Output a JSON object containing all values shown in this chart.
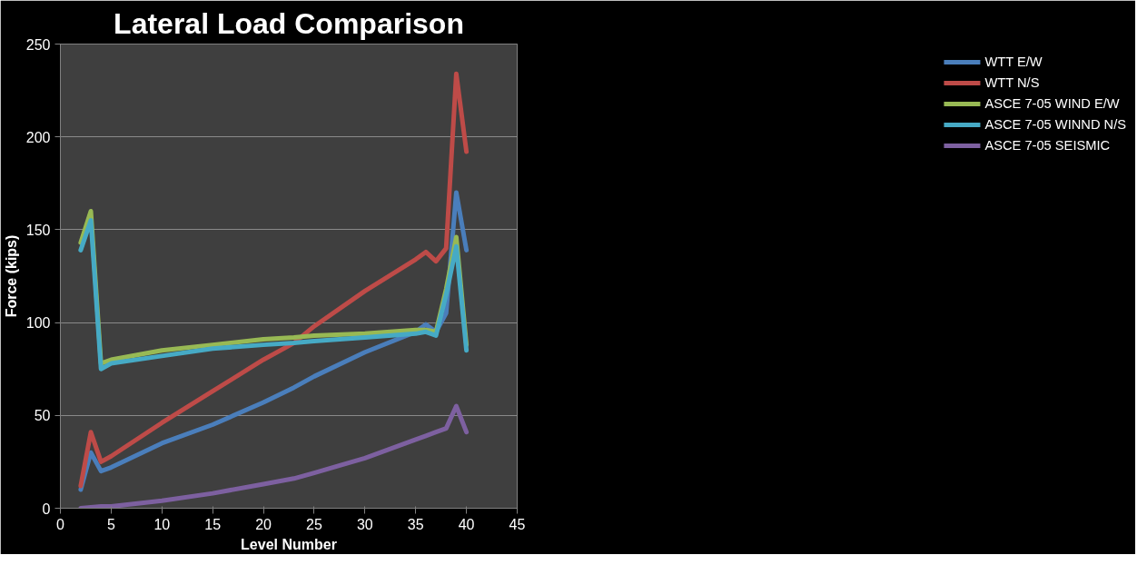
{
  "chart_data": {
    "type": "line",
    "title": "Lateral Load Comparison",
    "xlabel": "Level Number",
    "ylabel": "Force (kips)",
    "x": [
      2,
      3,
      4,
      5,
      10,
      15,
      20,
      23,
      25,
      30,
      35,
      36,
      37,
      38,
      39,
      40
    ],
    "xlim": [
      0,
      45
    ],
    "xticks": [
      0,
      5,
      10,
      15,
      20,
      25,
      30,
      35,
      40,
      45
    ],
    "ylim": [
      0,
      250
    ],
    "yticks": [
      0,
      50,
      100,
      150,
      200,
      250
    ],
    "grid": "y",
    "legend": "right",
    "marker": "none",
    "line_style": "solid",
    "series": [
      {
        "name": "WTT E/W",
        "color": "#4a7ebb",
        "values": [
          10,
          30,
          20,
          22,
          35,
          45,
          57,
          65,
          71,
          84,
          95,
          99,
          95,
          105,
          170,
          139
        ]
      },
      {
        "name": "WTT N/S",
        "color": "#be4b48",
        "values": [
          12,
          41,
          25,
          28,
          46,
          63,
          80,
          89,
          98,
          117,
          134,
          138,
          133,
          140,
          234,
          192
        ]
      },
      {
        "name": "ASCE 7-05 WIND E/W",
        "color": "#98b954",
        "values": [
          143,
          160,
          78,
          80,
          85,
          88,
          91,
          92,
          93,
          94,
          96,
          96,
          95,
          118,
          146,
          88
        ]
      },
      {
        "name": "ASCE 7-05 WINND N/S",
        "color": "#46aac5",
        "values": [
          139,
          155,
          75,
          78,
          82,
          86,
          88,
          89,
          90,
          92,
          94,
          95,
          93,
          115,
          141,
          85
        ]
      },
      {
        "name": "ASCE 7-05 SEISMIC",
        "color": "#7d60a0",
        "values": [
          0,
          0.5,
          1,
          1,
          4,
          8,
          13,
          16,
          19,
          27,
          37,
          39,
          41,
          43,
          55,
          41
        ]
      }
    ]
  }
}
